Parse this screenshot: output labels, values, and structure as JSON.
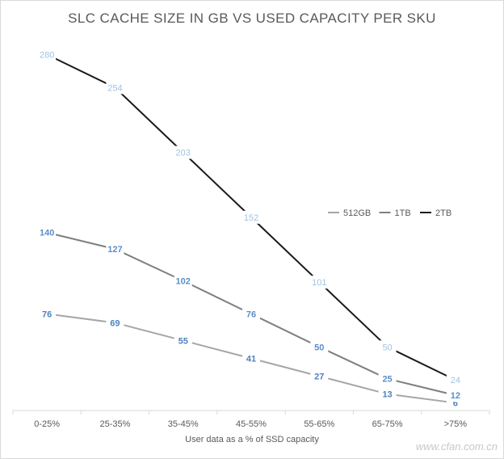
{
  "chart_data": {
    "type": "line",
    "title": "SLC CACHE SIZE IN GB VS USED CAPACITY PER SKU",
    "xlabel": "User data as a % of SSD capacity",
    "ylabel": "",
    "categories": [
      "0-25%",
      "25-35%",
      "35-45%",
      "45-55%",
      "55-65%",
      "65-75%",
      ">75%"
    ],
    "ylim": [
      0,
      300
    ],
    "grid": false,
    "legend_position": "right",
    "series": [
      {
        "name": "512GB",
        "values": [
          76,
          69,
          55,
          41,
          27,
          13,
          6
        ],
        "color": "#a6a6a6",
        "label_color": "#4f81bd",
        "label_bold": true
      },
      {
        "name": "1TB",
        "values": [
          140,
          127,
          102,
          76,
          50,
          25,
          12
        ],
        "color": "#7f7f7f",
        "label_color": "#5b8fc9",
        "label_bold": true
      },
      {
        "name": "2TB",
        "values": [
          280,
          254,
          203,
          152,
          101,
          50,
          24
        ],
        "color": "#1a1a1a",
        "label_color": "#9dc3e6",
        "label_bold": false
      }
    ]
  },
  "watermark": "www.cfan.com.cn"
}
